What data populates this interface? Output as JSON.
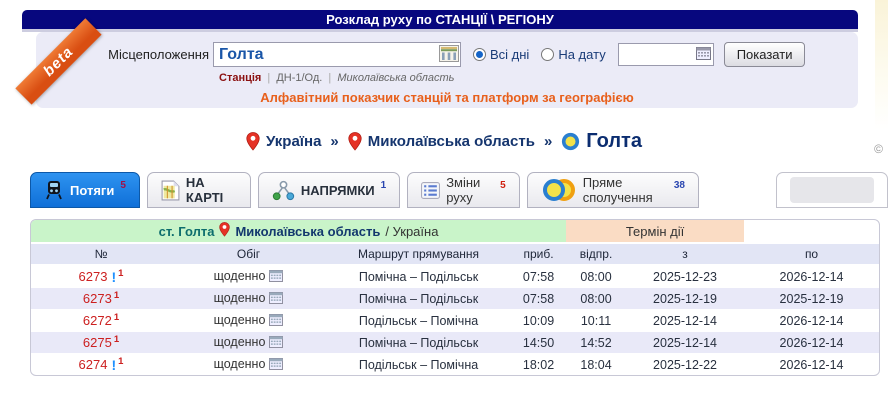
{
  "header": {
    "title": "Розклад руху по СТАНЦІЇ \\ РЕГІОНУ"
  },
  "beta_ribbon": "beta",
  "search": {
    "location_label": "Місцеположення",
    "location_value": "Голта",
    "meta": {
      "type": "Станція",
      "separator": "|",
      "division": "ДН-1/Од.",
      "region": "Миколаївська область"
    },
    "all_days_label": "Всі дні",
    "on_date_label": "На дату",
    "date_value": "",
    "submit_label": "Показати",
    "alphabet_link": "Алфавітний показчик станцій та платформ за географією"
  },
  "breadcrumb": {
    "separator": "»",
    "items": [
      {
        "icon": "map-pin-icon",
        "label": "Україна"
      },
      {
        "icon": "map-pin-icon",
        "label": "Миколаївська область"
      },
      {
        "icon": "station-circle-icon",
        "label": "Голта"
      }
    ]
  },
  "copyright": "©",
  "tabs": [
    {
      "label": "Потяги",
      "count": "5",
      "count_color": "#a01048",
      "icon": "train-icon",
      "active": true
    },
    {
      "label": "НА КАРТІ",
      "count": "",
      "count_color": "",
      "icon": "map-icon",
      "active": false
    },
    {
      "label": "НАПРЯМКИ",
      "count": "1",
      "count_color": "#2a46b0",
      "icon": "directions-icon",
      "active": false
    },
    {
      "label": "Зміни руху",
      "count": "5",
      "count_color": "#d02010",
      "icon": "list-icon",
      "active": false
    },
    {
      "label": "Пряме сполучення",
      "count": "38",
      "count_color": "#2a46b0",
      "icon": "direct-connection-icon",
      "active": false
    },
    {
      "label": "",
      "count": "",
      "count_color": "",
      "icon": "empty",
      "active": false
    }
  ],
  "table": {
    "station_header": {
      "station": "ст. Голта",
      "region": "Миколаївська область",
      "country": "/ Україна"
    },
    "term_header": "Термін дії",
    "columns": [
      "№",
      "Обіг",
      "Маршрут прямування",
      "приб.",
      "відпр.",
      "з",
      "по"
    ],
    "rows": [
      {
        "num": "6273",
        "warning": true,
        "note": "1",
        "service": "щоденно",
        "route": "Помічна – Подільськ",
        "arrival": "07:58",
        "departure": "08:00",
        "from": "2025-12-23",
        "to": "2026-12-14"
      },
      {
        "num": "6273",
        "warning": false,
        "note": "1",
        "service": "щоденно",
        "route": "Помічна – Подільськ",
        "arrival": "07:58",
        "departure": "08:00",
        "from": "2025-12-19",
        "to": "2025-12-19"
      },
      {
        "num": "6272",
        "warning": false,
        "note": "1",
        "service": "щоденно",
        "route": "Подільськ – Помічна",
        "arrival": "10:09",
        "departure": "10:11",
        "from": "2025-12-14",
        "to": "2026-12-14"
      },
      {
        "num": "6275",
        "warning": false,
        "note": "1",
        "service": "щоденно",
        "route": "Помічна – Подільськ",
        "arrival": "14:50",
        "departure": "14:52",
        "from": "2025-12-14",
        "to": "2026-12-14"
      },
      {
        "num": "6274",
        "warning": true,
        "note": "1",
        "service": "щоденно",
        "route": "Подільськ – Помічна",
        "arrival": "18:02",
        "departure": "18:04",
        "from": "2025-12-22",
        "to": "2026-12-14"
      }
    ]
  },
  "colors": {
    "header_bg": "#07077e",
    "active_tab_blue": "#1478e0",
    "panel_bg": "#ebebf7",
    "link_orange": "#e8601c",
    "station_green_bg": "#c9f4c9",
    "term_peach_bg": "#fadcc4",
    "row_alt_bg": "#e9e9f8",
    "train_number_red": "#cc2020",
    "breadcrumb_navy": "#15356e",
    "ribbon_orange": "#d94e12",
    "warning_blue": "#1e90ff"
  }
}
